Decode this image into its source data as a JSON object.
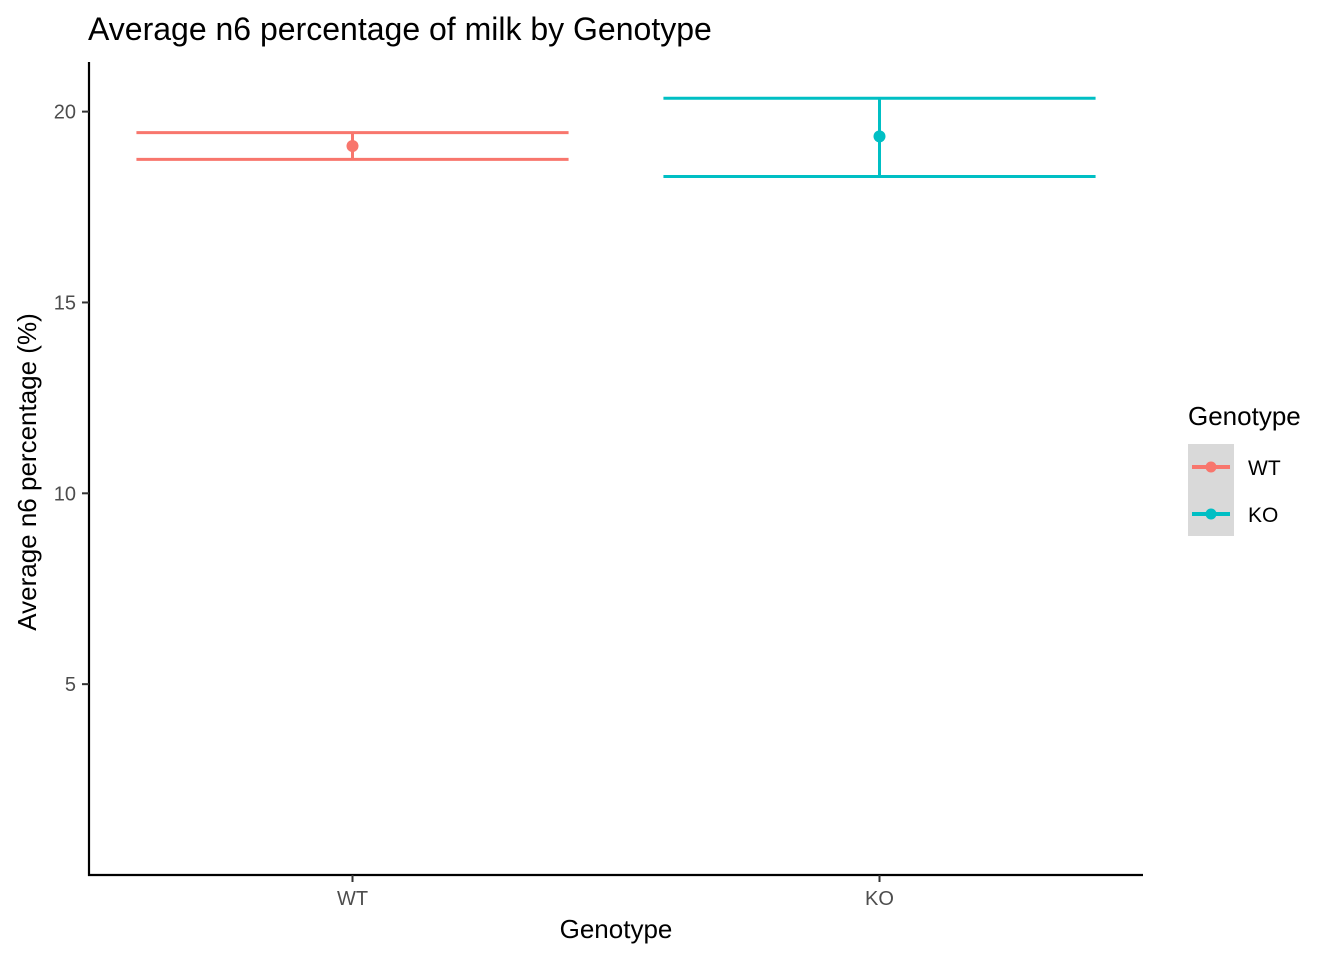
{
  "chart_data": {
    "type": "errorbar",
    "title": "Average n6 percentage of milk by Genotype",
    "xlabel": "Genotype",
    "ylabel": "Average n6 percentage (%)",
    "categories": [
      "WT",
      "KO"
    ],
    "ylim": [
      0,
      21.3
    ],
    "yticks": [
      5,
      10,
      15,
      20
    ],
    "grid": false,
    "series": [
      {
        "name": "WT",
        "category": "WT",
        "mean": 19.1,
        "lower": 18.75,
        "upper": 19.45,
        "color": "#F8766D"
      },
      {
        "name": "KO",
        "category": "KO",
        "mean": 19.35,
        "lower": 18.3,
        "upper": 20.35,
        "color": "#00BFC4"
      }
    ],
    "legend": {
      "title": "Genotype",
      "position": "right",
      "entries": [
        "WT",
        "KO"
      ]
    }
  }
}
